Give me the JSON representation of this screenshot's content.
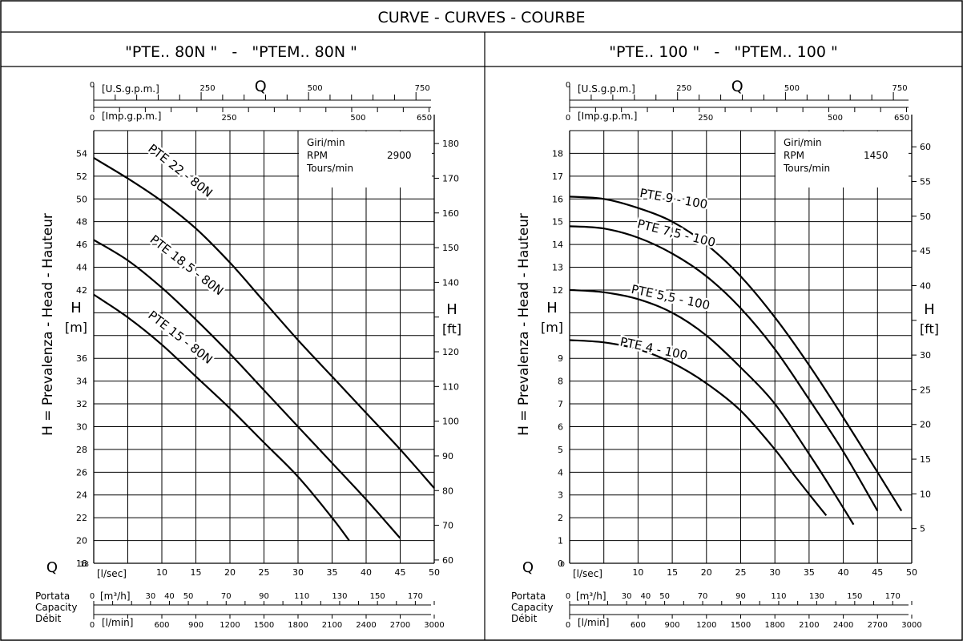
{
  "page_title": "CURVE - CURVES - COURBE",
  "units": {
    "usgpm": "[U.S.g.p.m.]",
    "impgpm": "[Imp.g.p.m.]",
    "q_letter": "Q",
    "lsec": "[l/sec]",
    "m3h": "[m³/h]",
    "lmin": "[l/min]",
    "h_letter": "H",
    "h_m": "[m]",
    "h_ft": "[ft]",
    "ylabel": "H = Prevalenza - Head - Hauteur",
    "portata": "Portata",
    "capacity": "Capacity",
    "debit": "Débit",
    "giri": "Giri/min",
    "rpm": "RPM",
    "tours": "Tours/min"
  },
  "chart_data": [
    {
      "type": "line",
      "title": "\"PTE.. 80N \"   -   \"PTEM.. 80N \"",
      "rpm_value": "2900",
      "xlabel": "[l/sec]",
      "ylabel": "H [m]",
      "xlim": [
        0,
        50
      ],
      "ylim": [
        18,
        56
      ],
      "x_ticks": [
        0,
        5,
        10,
        15,
        20,
        25,
        30,
        35,
        40,
        45,
        50
      ],
      "y_ticks": [
        18,
        20,
        22,
        24,
        26,
        28,
        30,
        32,
        34,
        36,
        38,
        40,
        42,
        44,
        46,
        48,
        50,
        52,
        54
      ],
      "y_tick_labels": [
        "18",
        "20",
        "22",
        "24",
        "26",
        "28",
        "30",
        "32",
        "34",
        "36",
        "",
        "",
        "42",
        "44",
        "46",
        "48",
        "50",
        "52",
        "54"
      ],
      "ft_ticks": [
        60,
        70,
        80,
        90,
        100,
        110,
        120,
        130,
        140,
        150,
        160,
        170,
        180
      ],
      "ft_tick_labels": [
        "60",
        "70",
        "80",
        "90",
        "100",
        "110",
        "120",
        "",
        "140",
        "150",
        "160",
        "170",
        "180"
      ],
      "usgpm_labels": [
        0,
        250,
        500,
        750
      ],
      "impgpm_labels": [
        0,
        250,
        500,
        650
      ],
      "m3h_labels": [
        30,
        40,
        50,
        70,
        90,
        110,
        130,
        150,
        170
      ],
      "lmin_labels": [
        0,
        600,
        900,
        1200,
        1500,
        1800,
        2100,
        2400,
        2700,
        3000
      ],
      "grid": true,
      "series": [
        {
          "name": "PTE 22 - 80N",
          "x": [
            0,
            5,
            10,
            15,
            20,
            25,
            30,
            35,
            40,
            45,
            50
          ],
          "y": [
            53.6,
            51.8,
            49.8,
            47.4,
            44.4,
            41.0,
            37.6,
            34.4,
            31.2,
            28.0,
            24.6
          ]
        },
        {
          "name": "PTE 18,5 - 80N",
          "x": [
            0,
            5,
            10,
            15,
            20,
            25,
            30,
            35,
            40,
            45
          ],
          "y": [
            46.4,
            44.6,
            42.2,
            39.4,
            36.4,
            33.2,
            30.0,
            26.8,
            23.6,
            20.2
          ]
        },
        {
          "name": "PTE 15 - 80N",
          "x": [
            0,
            5,
            10,
            15,
            20,
            25,
            30,
            35,
            37.5
          ],
          "y": [
            41.6,
            39.6,
            37.2,
            34.4,
            31.6,
            28.6,
            25.6,
            22.0,
            20.0
          ]
        }
      ]
    },
    {
      "type": "line",
      "title": "\"PTE.. 100 \"   -   \"PTEM.. 100 \"",
      "rpm_value": "1450",
      "xlabel": "[l/sec]",
      "ylabel": "H [m]",
      "xlim": [
        0,
        50
      ],
      "ylim": [
        0,
        19
      ],
      "x_ticks": [
        0,
        5,
        10,
        15,
        20,
        25,
        30,
        35,
        40,
        45,
        50
      ],
      "y_ticks": [
        0,
        1,
        2,
        3,
        4,
        5,
        6,
        7,
        8,
        9,
        10,
        11,
        12,
        13,
        14,
        15,
        16,
        17,
        18
      ],
      "y_tick_labels": [
        "0",
        "1",
        "2",
        "3",
        "4",
        "5",
        "6",
        "7",
        "8",
        "9",
        "",
        "",
        "12",
        "13",
        "14",
        "15",
        "16",
        "17",
        "18"
      ],
      "ft_ticks": [
        5,
        10,
        15,
        20,
        25,
        30,
        35,
        40,
        45,
        50,
        55,
        60
      ],
      "ft_tick_labels": [
        "5",
        "10",
        "15",
        "20",
        "25",
        "30",
        "",
        "40",
        "45",
        "50",
        "55",
        "60"
      ],
      "usgpm_labels": [
        0,
        250,
        500,
        750
      ],
      "impgpm_labels": [
        0,
        250,
        500,
        650
      ],
      "m3h_labels": [
        30,
        40,
        50,
        70,
        90,
        110,
        130,
        150,
        170
      ],
      "lmin_labels": [
        600,
        900,
        1200,
        1500,
        1800,
        2100,
        2400,
        2700,
        3000
      ],
      "grid": true,
      "series": [
        {
          "name": "PTE 9 - 100",
          "x": [
            0,
            5,
            10,
            15,
            20,
            25,
            30,
            35,
            40,
            45,
            48.5
          ],
          "y": [
            16.1,
            16.0,
            15.6,
            15.0,
            14.0,
            12.6,
            10.8,
            8.7,
            6.4,
            4.0,
            2.3
          ]
        },
        {
          "name": "PTE 7,5 - 100",
          "x": [
            0,
            5,
            10,
            15,
            20,
            25,
            30,
            35,
            40,
            45
          ],
          "y": [
            14.8,
            14.7,
            14.3,
            13.6,
            12.6,
            11.2,
            9.4,
            7.2,
            4.9,
            2.3
          ]
        },
        {
          "name": "PTE 5,5 - 100",
          "x": [
            0,
            5,
            10,
            15,
            20,
            25,
            30,
            35,
            38,
            41.5
          ],
          "y": [
            12.0,
            11.9,
            11.6,
            11.0,
            10.0,
            8.6,
            7.0,
            4.8,
            3.4,
            1.7
          ]
        },
        {
          "name": "PTE 4 - 100",
          "x": [
            0,
            5,
            10,
            15,
            20,
            25,
            30,
            33,
            37.5
          ],
          "y": [
            9.8,
            9.7,
            9.4,
            8.8,
            7.9,
            6.7,
            5.0,
            3.8,
            2.1
          ]
        }
      ]
    }
  ]
}
